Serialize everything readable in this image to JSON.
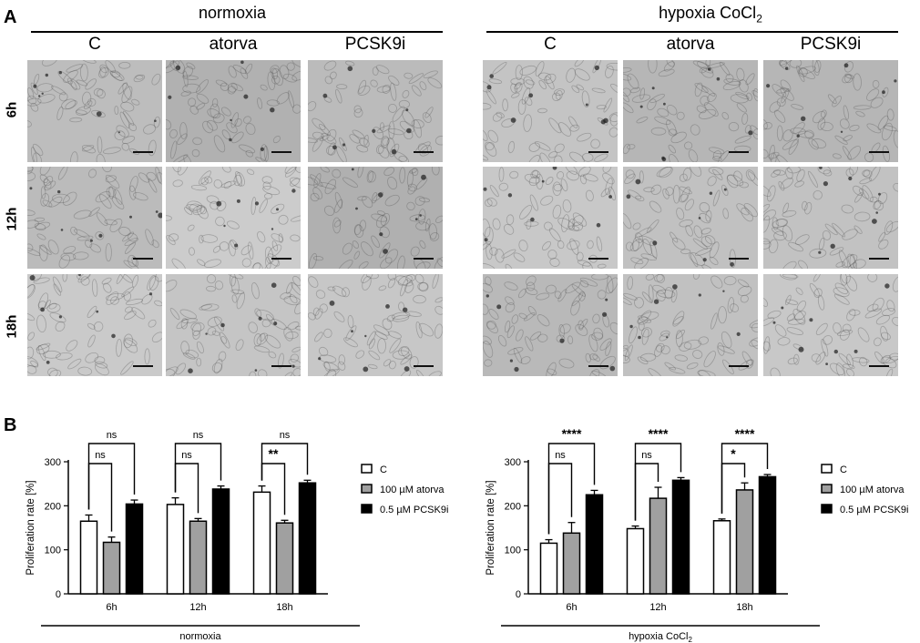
{
  "panel_a": {
    "letter": "A",
    "groups": [
      {
        "title": "normoxia",
        "title_sub": "",
        "columns": [
          "C",
          "atorva",
          "PCSK9i"
        ]
      },
      {
        "title": "hypoxia CoCl",
        "title_sub": "2",
        "columns": [
          "C",
          "atorva",
          "PCSK9i"
        ]
      }
    ],
    "rows": [
      "6h",
      "12h",
      "18h"
    ],
    "image_description": "phase-contrast micrographs of cell monolayers with scale bars"
  },
  "panel_b": {
    "letter": "B"
  },
  "chart_data": [
    {
      "type": "bar",
      "title": "",
      "xlabel": "normoxia",
      "xlabel_sub": "",
      "ylabel": "Proliferation rate [%]",
      "ylim": [
        0,
        300
      ],
      "yticks": [
        0,
        100,
        200,
        300
      ],
      "categories": [
        "6h",
        "12h",
        "18h"
      ],
      "series": [
        {
          "name": "C",
          "color": "#ffffff",
          "values": [
            165,
            203,
            231
          ],
          "errors": [
            14,
            15,
            14
          ]
        },
        {
          "name": "100 µM atorva",
          "color": "#a0a0a0",
          "values": [
            117,
            165,
            161
          ],
          "errors": [
            12,
            6,
            6
          ]
        },
        {
          "name": "0.5 µM PCSK9i",
          "color": "#000000",
          "values": [
            204,
            238,
            252
          ],
          "errors": [
            9,
            7,
            6
          ]
        }
      ],
      "significance": [
        {
          "category": "6h",
          "compare": [
            "C",
            "100 µM atorva"
          ],
          "label": "ns"
        },
        {
          "category": "6h",
          "compare": [
            "C",
            "0.5 µM PCSK9i"
          ],
          "label": "ns"
        },
        {
          "category": "12h",
          "compare": [
            "C",
            "100 µM atorva"
          ],
          "label": "ns"
        },
        {
          "category": "12h",
          "compare": [
            "C",
            "0.5 µM PCSK9i"
          ],
          "label": "ns"
        },
        {
          "category": "18h",
          "compare": [
            "C",
            "100 µM atorva"
          ],
          "label": "**"
        },
        {
          "category": "18h",
          "compare": [
            "C",
            "0.5 µM PCSK9i"
          ],
          "label": "ns"
        }
      ],
      "legend_position": "right"
    },
    {
      "type": "bar",
      "title": "",
      "xlabel": "hypoxia CoCl",
      "xlabel_sub": "2",
      "ylabel": "Proliferation rate [%]",
      "ylim": [
        0,
        300
      ],
      "yticks": [
        0,
        100,
        200,
        300
      ],
      "categories": [
        "6h",
        "12h",
        "18h"
      ],
      "series": [
        {
          "name": "C",
          "color": "#ffffff",
          "values": [
            115,
            148,
            166
          ],
          "errors": [
            8,
            6,
            4
          ]
        },
        {
          "name": "100 µM atorva",
          "color": "#a0a0a0",
          "values": [
            138,
            217,
            236
          ],
          "errors": [
            24,
            25,
            16
          ]
        },
        {
          "name": "0.5 µM PCSK9i",
          "color": "#000000",
          "values": [
            225,
            258,
            266
          ],
          "errors": [
            10,
            6,
            5
          ]
        }
      ],
      "significance": [
        {
          "category": "6h",
          "compare": [
            "C",
            "100 µM atorva"
          ],
          "label": "ns"
        },
        {
          "category": "6h",
          "compare": [
            "C",
            "0.5 µM PCSK9i"
          ],
          "label": "****"
        },
        {
          "category": "12h",
          "compare": [
            "C",
            "100 µM atorva"
          ],
          "label": "ns"
        },
        {
          "category": "12h",
          "compare": [
            "C",
            "0.5 µM PCSK9i"
          ],
          "label": "****"
        },
        {
          "category": "18h",
          "compare": [
            "C",
            "100 µM atorva"
          ],
          "label": "*"
        },
        {
          "category": "18h",
          "compare": [
            "C",
            "0.5 µM PCSK9i"
          ],
          "label": "****"
        }
      ],
      "legend_position": "right"
    }
  ]
}
